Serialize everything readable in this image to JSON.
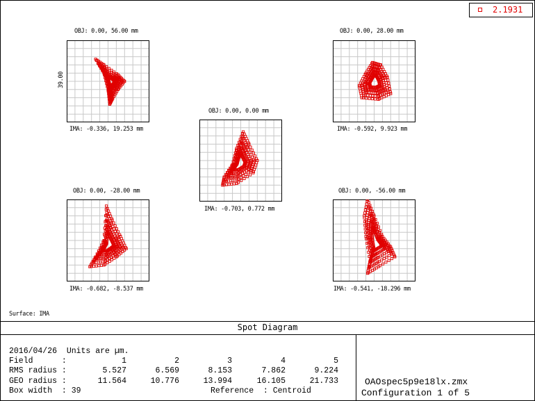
{
  "legend": {
    "value": "2.1931",
    "color": "#e00000"
  },
  "axis_label": "39.00",
  "surface": "Surface: IMA",
  "title": "Spot Diagram",
  "spots": [
    {
      "obj": "OBJ: 0.00, 56.00 mm",
      "ima": "IMA: -0.336, 19.253 mm"
    },
    {
      "obj": "OBJ: 0.00, 28.00 mm",
      "ima": "IMA: -0.592, 9.923 mm"
    },
    {
      "obj": "OBJ: 0.00, 0.00 mm",
      "ima": "IMA: -0.703, 0.772 mm"
    },
    {
      "obj": "OBJ: 0.00, -28.00 mm",
      "ima": "IMA: -0.682, -8.537 mm"
    },
    {
      "obj": "OBJ: 0.00, -56.00 mm",
      "ima": "IMA: -0.541, -18.296 mm"
    }
  ],
  "info": {
    "date_line": "2016/04/26  Units are µm.",
    "field_label": "Field      :",
    "rms_label": "RMS radius :",
    "geo_label": "GEO radius :",
    "box_label": "Box width  : 39",
    "reference": "Reference  : Centroid",
    "fields": [
      "1",
      "2",
      "3",
      "4",
      "5"
    ],
    "rms": [
      "5.527",
      "6.569",
      "8.153",
      "7.862",
      "9.224"
    ],
    "geo": [
      "11.564",
      "10.776",
      "13.994",
      "16.105",
      "21.733"
    ]
  },
  "file": {
    "name": "OAOspec5p9e18lx.zmx",
    "config": "Configuration 1 of 5"
  }
}
